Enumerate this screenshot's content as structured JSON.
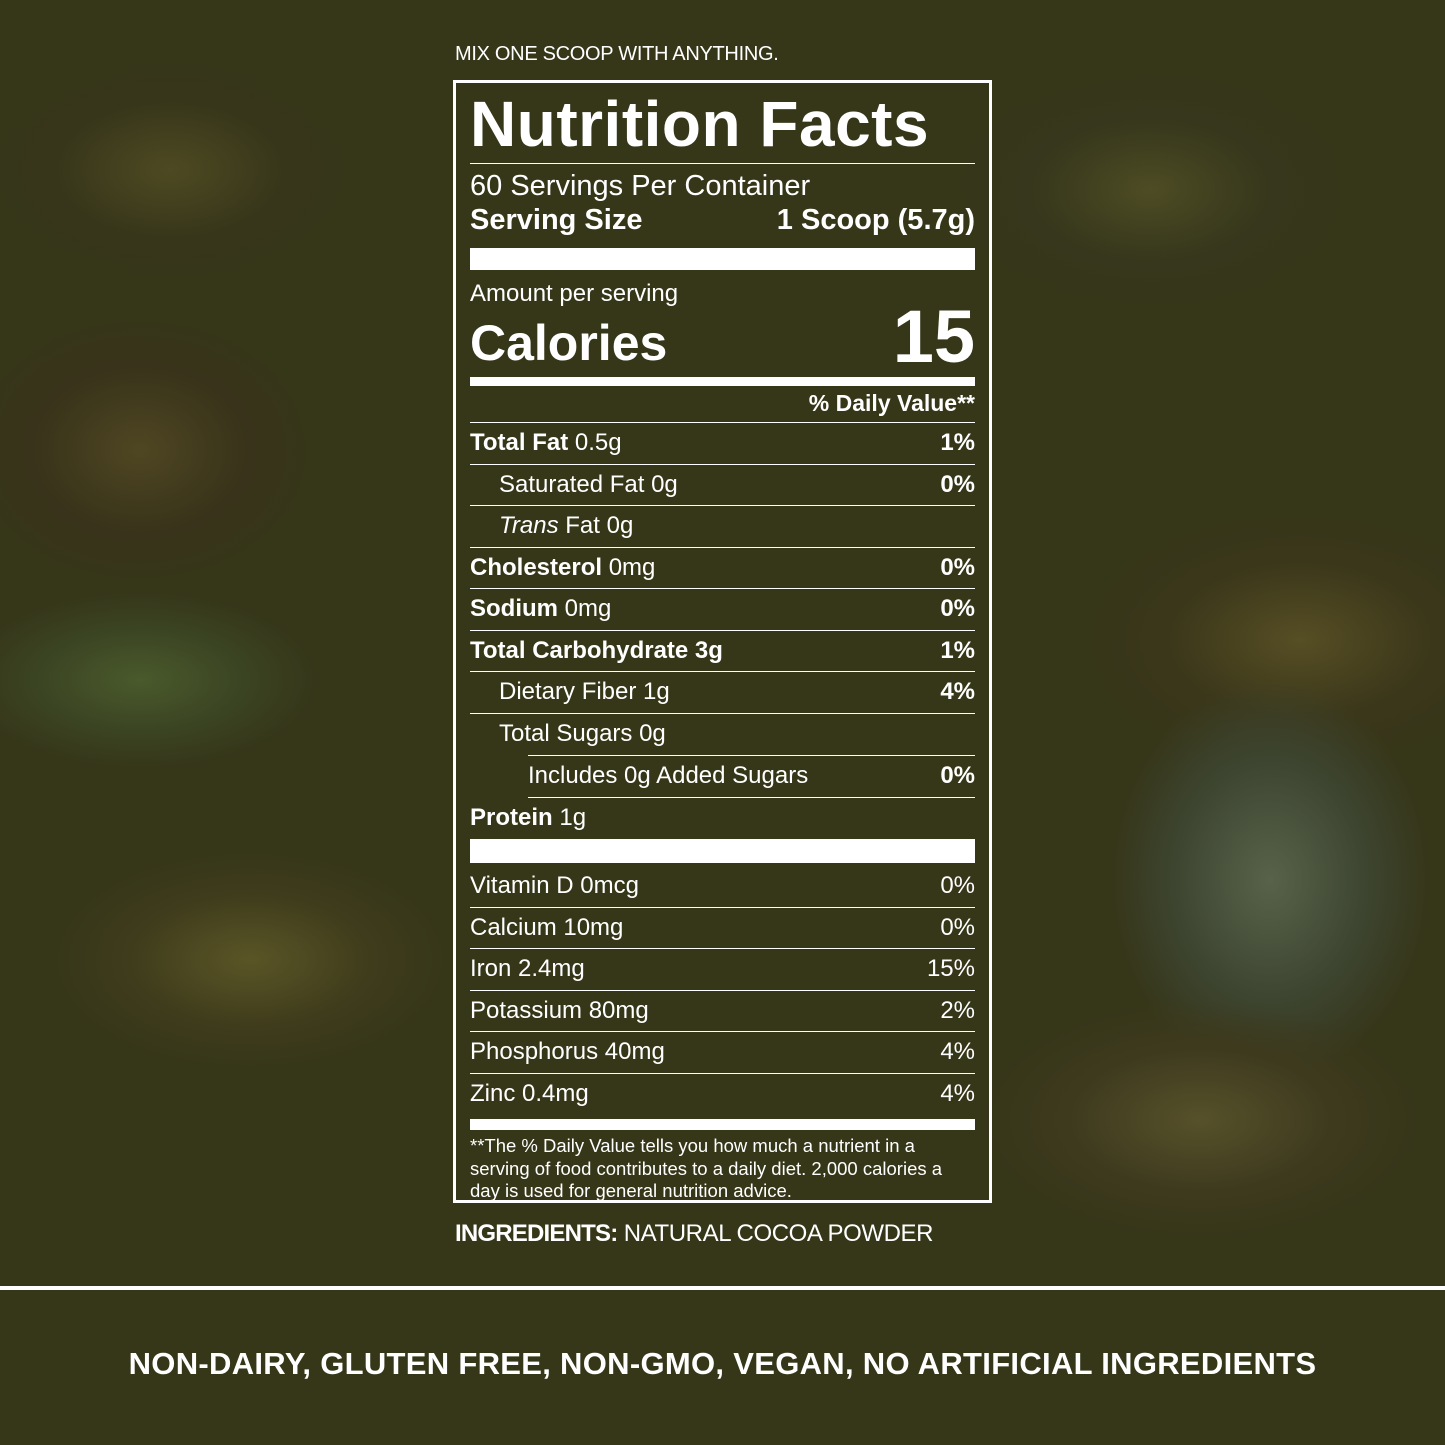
{
  "tagline": "MIX ONE SCOOP WITH ANYTHING.",
  "label": {
    "title": "Nutrition Facts",
    "servings": "60 Servings Per Container",
    "serving_size_label": "Serving Size",
    "serving_size_value": "1 Scoop (5.7g)",
    "amount_per_serving": "Amount per serving",
    "calories_label": "Calories",
    "calories_value": "15",
    "dv_header": "% Daily Value**",
    "nutrients": [
      {
        "name": "Total Fat",
        "amount": "0.5g",
        "dv": "1%"
      },
      {
        "name": "Saturated Fat 0g",
        "amount": "",
        "dv": "0%"
      },
      {
        "name": "Trans",
        "amount": "Fat 0g",
        "dv": ""
      },
      {
        "name": "Cholesterol",
        "amount": "0mg",
        "dv": "0%"
      },
      {
        "name": "Sodium",
        "amount": "0mg",
        "dv": "0%"
      },
      {
        "name": "Total Carbohydrate 3g",
        "amount": "",
        "dv": "1%"
      },
      {
        "name": "Dietary Fiber 1g",
        "amount": "",
        "dv": "4%"
      },
      {
        "name": "Total Sugars 0g",
        "amount": "",
        "dv": ""
      },
      {
        "name": "Includes 0g Added Sugars",
        "amount": "",
        "dv": "0%"
      },
      {
        "name": "Protein",
        "amount": "1g",
        "dv": ""
      }
    ],
    "vitamins": [
      {
        "name": "Vitamin D 0mcg",
        "dv": "0%"
      },
      {
        "name": "Calcium 10mg",
        "dv": "0%"
      },
      {
        "name": "Iron 2.4mg",
        "dv": "15%"
      },
      {
        "name": "Potassium 80mg",
        "dv": "2%"
      },
      {
        "name": "Phosphorus 40mg",
        "dv": "4%"
      },
      {
        "name": "Zinc 0.4mg",
        "dv": "4%"
      }
    ],
    "footnote": "**The % Daily Value tells you how much a nutrient in a serving of food contributes to a daily diet. 2,000 calories a day is used for general nutrition advice."
  },
  "ingredients": {
    "label": "INGREDIENTS:",
    "value": "NATURAL COCOA POWDER"
  },
  "claims": "NON-DAIRY, GLUTEN FREE, NON-GMO, VEGAN, NO ARTIFICIAL INGREDIENTS"
}
